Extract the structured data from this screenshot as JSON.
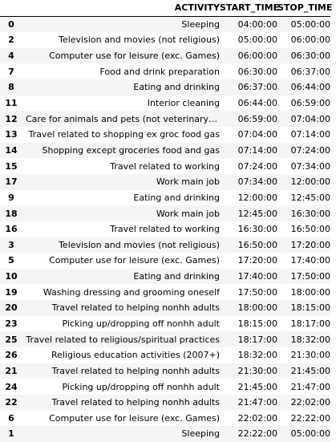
{
  "columns": {
    "index": "",
    "activity": "ACTIVITY",
    "start": "START_TIME",
    "stop": "STOP_TIME"
  },
  "rows": [
    {
      "idx": "0",
      "activity": "Sleeping",
      "start": "04:00:00",
      "stop": "05:00:00"
    },
    {
      "idx": "2",
      "activity": "Television and movies (not religious)",
      "start": "05:00:00",
      "stop": "06:00:00"
    },
    {
      "idx": "4",
      "activity": "Computer use for leisure (exc. Games)",
      "start": "06:00:00",
      "stop": "06:30:00"
    },
    {
      "idx": "7",
      "activity": "Food and drink preparation",
      "start": "06:30:00",
      "stop": "06:37:00"
    },
    {
      "idx": "8",
      "activity": "Eating and drinking",
      "start": "06:37:00",
      "stop": "06:44:00"
    },
    {
      "idx": "11",
      "activity": "Interior cleaning",
      "start": "06:44:00",
      "stop": "06:59:00"
    },
    {
      "idx": "12",
      "activity": "Care for animals and pets (not veterinary care...",
      "start": "06:59:00",
      "stop": "07:04:00"
    },
    {
      "idx": "13",
      "activity": "Travel related to shopping ex groc food gas",
      "start": "07:04:00",
      "stop": "07:14:00"
    },
    {
      "idx": "14",
      "activity": "Shopping except groceries food and gas",
      "start": "07:14:00",
      "stop": "07:24:00"
    },
    {
      "idx": "15",
      "activity": "Travel related to working",
      "start": "07:24:00",
      "stop": "07:34:00"
    },
    {
      "idx": "17",
      "activity": "Work main job",
      "start": "07:34:00",
      "stop": "12:00:00"
    },
    {
      "idx": "9",
      "activity": "Eating and drinking",
      "start": "12:00:00",
      "stop": "12:45:00"
    },
    {
      "idx": "18",
      "activity": "Work main job",
      "start": "12:45:00",
      "stop": "16:30:00"
    },
    {
      "idx": "16",
      "activity": "Travel related to working",
      "start": "16:30:00",
      "stop": "16:50:00"
    },
    {
      "idx": "3",
      "activity": "Television and movies (not religious)",
      "start": "16:50:00",
      "stop": "17:20:00"
    },
    {
      "idx": "5",
      "activity": "Computer use for leisure (exc. Games)",
      "start": "17:20:00",
      "stop": "17:40:00"
    },
    {
      "idx": "10",
      "activity": "Eating and drinking",
      "start": "17:40:00",
      "stop": "17:50:00"
    },
    {
      "idx": "19",
      "activity": "Washing dressing and grooming oneself",
      "start": "17:50:00",
      "stop": "18:00:00"
    },
    {
      "idx": "20",
      "activity": "Travel related to helping nonhh adults",
      "start": "18:00:00",
      "stop": "18:15:00"
    },
    {
      "idx": "23",
      "activity": "Picking up/dropping off nonhh adult",
      "start": "18:15:00",
      "stop": "18:17:00"
    },
    {
      "idx": "25",
      "activity": "Travel related to religious/spiritual practices",
      "start": "18:17:00",
      "stop": "18:32:00"
    },
    {
      "idx": "26",
      "activity": "Religious education activities (2007+)",
      "start": "18:32:00",
      "stop": "21:30:00"
    },
    {
      "idx": "21",
      "activity": "Travel related to helping nonhh adults",
      "start": "21:30:00",
      "stop": "21:45:00"
    },
    {
      "idx": "24",
      "activity": "Picking up/dropping off nonhh adult",
      "start": "21:45:00",
      "stop": "21:47:00"
    },
    {
      "idx": "22",
      "activity": "Travel related to helping nonhh adults",
      "start": "21:47:00",
      "stop": "22:02:00"
    },
    {
      "idx": "6",
      "activity": "Computer use for leisure (exc. Games)",
      "start": "22:02:00",
      "stop": "22:22:00"
    },
    {
      "idx": "1",
      "activity": "Sleeping",
      "start": "22:22:00",
      "stop": "05:00:00"
    }
  ]
}
